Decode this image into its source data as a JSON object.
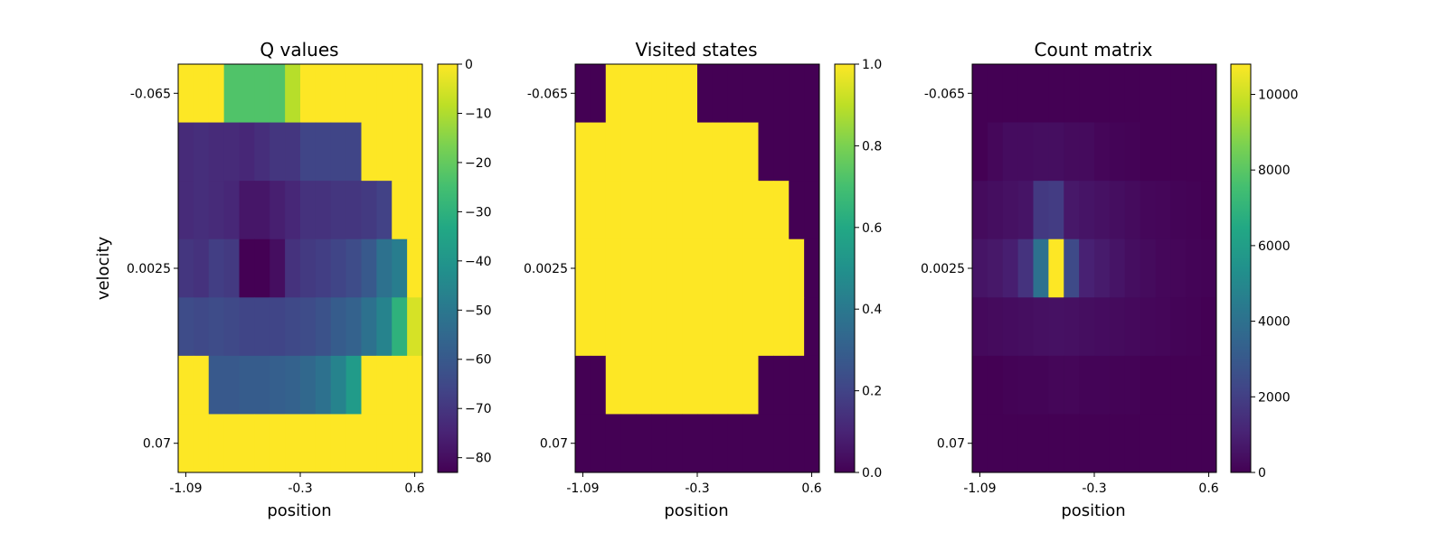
{
  "chart_data": [
    {
      "type": "heatmap",
      "title": "Q values",
      "xlabel": "position",
      "ylabel": "velocity",
      "xticks": [
        "-1.09",
        "-0.3",
        "0.6"
      ],
      "yticks": [
        "-0.065",
        "0.0025",
        "0.07"
      ],
      "colorbar": {
        "ticks": [
          "0",
          "−10",
          "−20",
          "−30",
          "−40",
          "−50",
          "−60",
          "−70",
          "−80"
        ],
        "tick_values": [
          0,
          -10,
          -20,
          -30,
          -40,
          -50,
          -60,
          -70,
          -80
        ],
        "range": [
          -83,
          0
        ]
      },
      "values": [
        [
          0,
          0,
          0,
          -23,
          -23,
          -23,
          -23,
          -9,
          0,
          0,
          0,
          0,
          0,
          0,
          0,
          0
        ],
        [
          -73,
          -72,
          -73,
          -73,
          -74,
          -72,
          -70,
          -70,
          -66,
          -66,
          -66,
          -66,
          0,
          0,
          0,
          0
        ],
        [
          -73,
          -72,
          -73,
          -74,
          -78,
          -78,
          -76,
          -74,
          -71,
          -71,
          -70,
          -70,
          -69,
          -67,
          0,
          0
        ],
        [
          -70,
          -71,
          -68,
          -69,
          -83,
          -83,
          -80,
          -71,
          -69,
          -68,
          -66,
          -64,
          -60,
          -52,
          -48,
          0
        ],
        [
          -64,
          -65,
          -64,
          -65,
          -66,
          -66,
          -66,
          -65,
          -64,
          -62,
          -59,
          -57,
          -52,
          -46,
          -30,
          -5
        ],
        [
          0,
          0,
          -60,
          -60,
          -59,
          -59,
          -58,
          -57,
          -55,
          -52,
          -46,
          -38,
          0,
          0,
          0,
          0
        ],
        [
          0,
          0,
          0,
          0,
          0,
          0,
          0,
          0,
          0,
          0,
          0,
          0,
          0,
          0,
          0,
          0
        ]
      ]
    },
    {
      "type": "heatmap",
      "title": "Visited states",
      "xlabel": "position",
      "ylabel": "",
      "xticks": [
        "-1.09",
        "-0.3",
        "0.6"
      ],
      "yticks": [
        "-0.065",
        "0.0025",
        "0.07"
      ],
      "colorbar": {
        "ticks": [
          "0.0",
          "0.2",
          "0.4",
          "0.6",
          "0.8",
          "1.0"
        ],
        "tick_values": [
          0,
          0.2,
          0.4,
          0.6,
          0.8,
          1.0
        ],
        "range": [
          0,
          1
        ]
      },
      "values": [
        [
          0,
          0,
          1,
          1,
          1,
          1,
          1,
          1,
          0,
          0,
          0,
          0,
          0,
          0,
          0,
          0
        ],
        [
          1,
          1,
          1,
          1,
          1,
          1,
          1,
          1,
          1,
          1,
          1,
          1,
          0,
          0,
          0,
          0
        ],
        [
          1,
          1,
          1,
          1,
          1,
          1,
          1,
          1,
          1,
          1,
          1,
          1,
          1,
          1,
          0,
          0
        ],
        [
          1,
          1,
          1,
          1,
          1,
          1,
          1,
          1,
          1,
          1,
          1,
          1,
          1,
          1,
          1,
          0
        ],
        [
          1,
          1,
          1,
          1,
          1,
          1,
          1,
          1,
          1,
          1,
          1,
          1,
          1,
          1,
          1,
          0
        ],
        [
          0,
          0,
          1,
          1,
          1,
          1,
          1,
          1,
          1,
          1,
          1,
          1,
          0,
          0,
          0,
          0
        ],
        [
          0,
          0,
          0,
          0,
          0,
          0,
          0,
          0,
          0,
          0,
          0,
          0,
          0,
          0,
          0,
          0
        ]
      ]
    },
    {
      "type": "heatmap",
      "title": "Count matrix",
      "xlabel": "position",
      "ylabel": "",
      "xticks": [
        "-1.09",
        "-0.3",
        "0.6"
      ],
      "yticks": [
        "-0.065",
        "0.0025",
        "0.07"
      ],
      "colorbar": {
        "ticks": [
          "0",
          "2000",
          "4000",
          "6000",
          "8000",
          "10000"
        ],
        "tick_values": [
          0,
          2000,
          4000,
          6000,
          8000,
          10000
        ],
        "range": [
          0,
          10800
        ]
      },
      "values": [
        [
          0,
          0,
          0,
          0,
          0,
          0,
          0,
          0,
          0,
          0,
          0,
          0,
          0,
          0,
          0,
          0
        ],
        [
          0,
          200,
          350,
          350,
          400,
          400,
          300,
          300,
          150,
          100,
          50,
          0,
          0,
          0,
          0,
          0
        ],
        [
          300,
          400,
          500,
          600,
          1800,
          1900,
          700,
          600,
          500,
          400,
          300,
          200,
          150,
          100,
          50,
          0
        ],
        [
          600,
          700,
          900,
          1600,
          4000,
          10800,
          2400,
          1000,
          800,
          600,
          400,
          300,
          200,
          150,
          100,
          50
        ],
        [
          250,
          300,
          350,
          400,
          450,
          500,
          450,
          400,
          350,
          300,
          250,
          200,
          150,
          100,
          50,
          0
        ],
        [
          0,
          0,
          50,
          100,
          100,
          150,
          150,
          100,
          100,
          50,
          50,
          0,
          0,
          0,
          0,
          0
        ],
        [
          0,
          0,
          0,
          0,
          0,
          0,
          0,
          0,
          0,
          0,
          0,
          0,
          0,
          0,
          0,
          0
        ]
      ]
    }
  ]
}
